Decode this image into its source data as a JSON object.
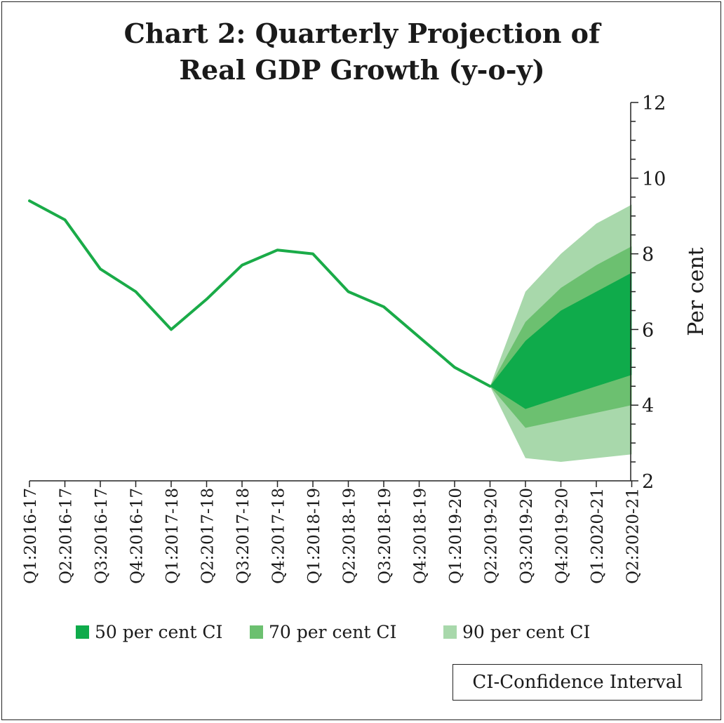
{
  "chart_data": {
    "type": "line",
    "title_lines": [
      "Chart 2: Quarterly Projection of",
      "Real GDP Growth (y-o-y)"
    ],
    "ylabel": "Per cent",
    "xlabel": "",
    "ylim": [
      2,
      12
    ],
    "yticks": [
      2,
      4,
      6,
      8,
      10,
      12
    ],
    "y_axis_position": "right",
    "grid": false,
    "categories": [
      "Q1:2016-17",
      "Q2:2016-17",
      "Q3:2016-17",
      "Q4:2016-17",
      "Q1:2017-18",
      "Q2:2017-18",
      "Q3:2017-18",
      "Q4:2017-18",
      "Q1:2018-19",
      "Q2:2018-19",
      "Q3:2018-19",
      "Q4:2018-19",
      "Q1:2019-20",
      "Q2:2019-20",
      "Q3:2019-20",
      "Q4:2019-20",
      "Q1:2020-21",
      "Q2:2020-21"
    ],
    "series": [
      {
        "values": [
          9.4,
          8.9,
          7.6,
          7.0,
          6.0,
          6.8,
          7.7,
          8.1,
          8.0,
          7.0,
          6.6,
          5.8,
          5.0,
          4.5,
          null,
          null,
          null,
          null
        ]
      }
    ],
    "fan": {
      "start_category": "Q2:2019-20",
      "bands": [
        {
          "name": "90 per cent CI",
          "lower": [
            4.5,
            2.6,
            2.5,
            2.6,
            2.7
          ],
          "upper": [
            4.5,
            7.0,
            8.0,
            8.8,
            9.3
          ]
        },
        {
          "name": "70 per cent CI",
          "lower": [
            4.5,
            3.4,
            3.6,
            3.8,
            4.0
          ],
          "upper": [
            4.5,
            6.2,
            7.1,
            7.7,
            8.2
          ]
        },
        {
          "name": "50 per cent CI",
          "lower": [
            4.5,
            3.9,
            4.2,
            4.5,
            4.8
          ],
          "upper": [
            4.5,
            5.7,
            6.5,
            7.0,
            7.5
          ]
        }
      ]
    },
    "legend_position": "bottom",
    "note": "CI-Confidence Interval"
  },
  "colors": {
    "line": "#1aab48",
    "ci50": "#0fab4b",
    "ci70": "#6cc070",
    "ci90": "#a8d8ab",
    "axis": "#222222"
  }
}
